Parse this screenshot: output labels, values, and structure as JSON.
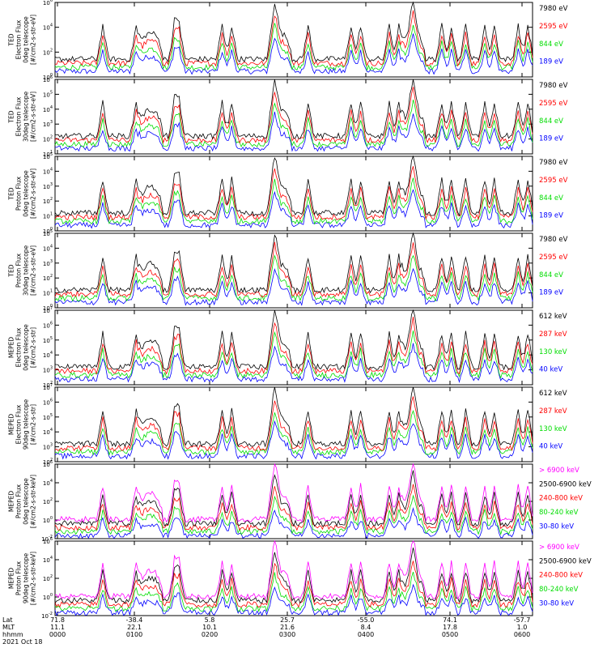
{
  "chart_data": [
    {
      "type": "line",
      "ylabel": [
        "TED",
        "Electron Flux",
        "0deg telescope",
        "[#/cm2-s-str-eV]"
      ],
      "yticks": [
        "10^6",
        "10^4",
        "10^2",
        "10^0"
      ],
      "ylim_exp": [
        0,
        6
      ],
      "series": [
        {
          "name": "7980 eV",
          "color": "#000000"
        },
        {
          "name": "2595 eV",
          "color": "#ff0000"
        },
        {
          "name": "844 eV",
          "color": "#00dd00"
        },
        {
          "name": "189 eV",
          "color": "#0000ff"
        }
      ]
    },
    {
      "type": "line",
      "ylabel": [
        "TED",
        "Electron Flux",
        "30deg telescope",
        "[#/cm2-s-str-eV]"
      ],
      "yticks": [
        "10^6",
        "10^5",
        "10^4",
        "10^3",
        "10^2",
        "10^1"
      ],
      "ylim_exp": [
        1,
        6
      ],
      "series": [
        {
          "name": "7980 eV",
          "color": "#000000"
        },
        {
          "name": "2595 eV",
          "color": "#ff0000"
        },
        {
          "name": "844 eV",
          "color": "#00dd00"
        },
        {
          "name": "189 eV",
          "color": "#0000ff"
        }
      ]
    },
    {
      "type": "line",
      "ylabel": [
        "TED",
        "Proton Flux",
        "0deg telescope",
        "[#/cm2-s-str-eV]"
      ],
      "yticks": [
        "10^5",
        "10^4",
        "10^3",
        "10^2",
        "10^1",
        "10^0"
      ],
      "ylim_exp": [
        0,
        5
      ],
      "series": [
        {
          "name": "7980 eV",
          "color": "#000000"
        },
        {
          "name": "2595 eV",
          "color": "#ff0000"
        },
        {
          "name": "844 eV",
          "color": "#00dd00"
        },
        {
          "name": "189 eV",
          "color": "#0000ff"
        }
      ]
    },
    {
      "type": "line",
      "ylabel": [
        "TED",
        "Proton Flux",
        "30deg telescope",
        "[#/cm2-s-str-eV]"
      ],
      "yticks": [
        "10^5",
        "10^4",
        "10^3",
        "10^2",
        "10^1",
        "10^0"
      ],
      "ylim_exp": [
        0,
        5
      ],
      "series": [
        {
          "name": "7980 eV",
          "color": "#000000"
        },
        {
          "name": "2595 eV",
          "color": "#ff0000"
        },
        {
          "name": "844 eV",
          "color": "#00dd00"
        },
        {
          "name": "189 eV",
          "color": "#0000ff"
        }
      ]
    },
    {
      "type": "line",
      "ylabel": [
        "MEPED",
        "Electron Flux",
        "0deg telescope",
        "[#/cm2-s-str]"
      ],
      "yticks": [
        "10^7",
        "10^6",
        "10^5",
        "10^4",
        "10^3",
        "10^2"
      ],
      "ylim_exp": [
        2,
        7
      ],
      "series": [
        {
          "name": "612 keV",
          "color": "#000000"
        },
        {
          "name": "287 keV",
          "color": "#ff0000"
        },
        {
          "name": "130 keV",
          "color": "#00dd00"
        },
        {
          "name": "40 keV",
          "color": "#0000ff"
        }
      ]
    },
    {
      "type": "line",
      "ylabel": [
        "MEPED",
        "Electron Flux",
        "90deg telescope",
        "[#/cm2-s-str]"
      ],
      "yticks": [
        "10^7",
        "10^6",
        "10^5",
        "10^4",
        "10^3",
        "10^2"
      ],
      "ylim_exp": [
        2,
        7
      ],
      "series": [
        {
          "name": "612 keV",
          "color": "#000000"
        },
        {
          "name": "287 keV",
          "color": "#ff0000"
        },
        {
          "name": "130 keV",
          "color": "#00dd00"
        },
        {
          "name": "40 keV",
          "color": "#0000ff"
        }
      ]
    },
    {
      "type": "line",
      "ylabel": [
        "MEPED",
        "Proton Flux",
        "0deg telescope",
        "[#/cm2-s-str-keV]"
      ],
      "yticks": [
        "10^6",
        "10^4",
        "10^2",
        "10^0",
        "10^-2"
      ],
      "ylim_exp": [
        -2,
        6
      ],
      "series": [
        {
          "name": "> 6900 keV",
          "color": "#ff00ff"
        },
        {
          "name": "2500-6900 keV",
          "color": "#000000"
        },
        {
          "name": "240-800 keV",
          "color": "#ff0000"
        },
        {
          "name": "80-240 keV",
          "color": "#00dd00"
        },
        {
          "name": "30-80 keV",
          "color": "#0000ff"
        }
      ]
    },
    {
      "type": "line",
      "ylabel": [
        "MEPED",
        "Proton Flux",
        "90deg telescope",
        "[#/cm2-s-str-keV]"
      ],
      "yticks": [
        "10^6",
        "10^4",
        "10^2",
        "10^0",
        "10^-2"
      ],
      "ylim_exp": [
        -2,
        6
      ],
      "series": [
        {
          "name": "> 6900 keV",
          "color": "#ff00ff"
        },
        {
          "name": "2500-6900 keV",
          "color": "#000000"
        },
        {
          "name": "240-800 keV",
          "color": "#ff0000"
        },
        {
          "name": "80-240 keV",
          "color": "#00dd00"
        },
        {
          "name": "30-80 keV",
          "color": "#0000ff"
        }
      ]
    }
  ],
  "xaxis": {
    "row_labels": [
      "Lat",
      "MLT",
      "hhmm"
    ],
    "date": "2021 Oct 18",
    "columns": [
      {
        "lat": "71.8",
        "mlt": "11.1",
        "hhmm": "0000"
      },
      {
        "lat": "-38.4",
        "mlt": "22.1",
        "hhmm": "0100"
      },
      {
        "lat": "5.8",
        "mlt": "10.1",
        "hhmm": "0200"
      },
      {
        "lat": "25.7",
        "mlt": "21.6",
        "hhmm": "0300"
      },
      {
        "lat": "-55.0",
        "mlt": "8.4",
        "hhmm": "0400"
      },
      {
        "lat": "74.1",
        "mlt": "17.8",
        "hhmm": "0500"
      },
      {
        "lat": "-57.7",
        "mlt": "1.0",
        "hhmm": "0600"
      }
    ]
  }
}
